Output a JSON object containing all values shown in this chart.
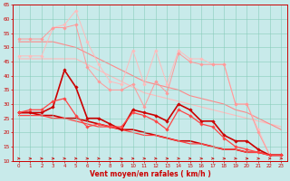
{
  "xlabel": "Vent moyen/en rafales ( km/h )",
  "xlim": [
    -0.5,
    23.5
  ],
  "ylim": [
    10,
    65
  ],
  "yticks": [
    10,
    15,
    20,
    25,
    30,
    35,
    40,
    45,
    50,
    55,
    60,
    65
  ],
  "xticks": [
    0,
    1,
    2,
    3,
    4,
    5,
    6,
    7,
    8,
    9,
    10,
    11,
    12,
    13,
    14,
    15,
    16,
    17,
    18,
    19,
    20,
    21,
    22,
    23
  ],
  "bg_color": "#c8eaea",
  "grid_color": "#88ccbb",
  "lines": [
    {
      "x": [
        0,
        1,
        2,
        3,
        4,
        5,
        6,
        7,
        8,
        9,
        10,
        11,
        12,
        13,
        14,
        15,
        16,
        17,
        18,
        19,
        20,
        21,
        22,
        23
      ],
      "y": [
        47,
        47,
        47,
        57,
        58,
        63,
        52,
        44,
        38,
        37,
        49,
        37,
        49,
        37,
        49,
        46,
        46,
        44,
        44,
        30,
        30,
        21,
        12,
        12
      ],
      "color": "#ffbbbb",
      "lw": 0.7,
      "marker": "D",
      "ms": 1.8,
      "zorder": 2
    },
    {
      "x": [
        0,
        1,
        2,
        3,
        4,
        5,
        6,
        7,
        8,
        9,
        10,
        11,
        12,
        13,
        14,
        15,
        16,
        17,
        18,
        19,
        20,
        21,
        22,
        23
      ],
      "y": [
        53,
        53,
        53,
        57,
        57,
        58,
        43,
        38,
        35,
        35,
        37,
        29,
        38,
        34,
        48,
        45,
        44,
        44,
        44,
        30,
        30,
        20,
        12,
        12
      ],
      "color": "#ff9999",
      "lw": 0.7,
      "marker": "D",
      "ms": 1.8,
      "zorder": 2
    },
    {
      "x": [
        0,
        1,
        2,
        3,
        4,
        5,
        6,
        7,
        8,
        9,
        10,
        11,
        12,
        13,
        14,
        15,
        16,
        17,
        18,
        19,
        20,
        21,
        22,
        23
      ],
      "y": [
        46,
        46,
        46,
        46,
        46,
        46,
        44,
        42,
        40,
        38,
        36,
        34,
        33,
        32,
        31,
        30,
        29,
        28,
        27,
        26,
        25,
        24,
        23,
        22
      ],
      "color": "#ffbbbb",
      "lw": 0.8,
      "marker": null,
      "ms": 0,
      "zorder": 1
    },
    {
      "x": [
        0,
        1,
        2,
        3,
        4,
        5,
        6,
        7,
        8,
        9,
        10,
        11,
        12,
        13,
        14,
        15,
        16,
        17,
        18,
        19,
        20,
        21,
        22,
        23
      ],
      "y": [
        52,
        52,
        52,
        52,
        51,
        50,
        48,
        46,
        44,
        42,
        40,
        38,
        37,
        36,
        35,
        33,
        32,
        31,
        30,
        28,
        27,
        25,
        23,
        21
      ],
      "color": "#ff8888",
      "lw": 0.8,
      "marker": null,
      "ms": 0,
      "zorder": 1
    },
    {
      "x": [
        0,
        1,
        2,
        3,
        4,
        5,
        6,
        7,
        8,
        9,
        10,
        11,
        12,
        13,
        14,
        15,
        16,
        17,
        18,
        19,
        20,
        21,
        22,
        23
      ],
      "y": [
        27,
        27,
        27,
        29,
        42,
        36,
        25,
        25,
        23,
        21,
        28,
        27,
        26,
        24,
        30,
        28,
        24,
        24,
        19,
        17,
        17,
        14,
        12,
        12
      ],
      "color": "#cc0000",
      "lw": 1.2,
      "marker": "D",
      "ms": 1.8,
      "zorder": 3
    },
    {
      "x": [
        0,
        1,
        2,
        3,
        4,
        5,
        6,
        7,
        8,
        9,
        10,
        11,
        12,
        13,
        14,
        15,
        16,
        17,
        18,
        19,
        20,
        21,
        22,
        23
      ],
      "y": [
        27,
        28,
        28,
        31,
        32,
        26,
        22,
        23,
        22,
        22,
        27,
        26,
        24,
        21,
        28,
        26,
        23,
        22,
        18,
        15,
        14,
        13,
        12,
        12
      ],
      "color": "#ff4444",
      "lw": 0.9,
      "marker": "D",
      "ms": 1.8,
      "zorder": 3
    },
    {
      "x": [
        0,
        1,
        2,
        3,
        4,
        5,
        6,
        7,
        8,
        9,
        10,
        11,
        12,
        13,
        14,
        15,
        16,
        17,
        18,
        19,
        20,
        21,
        22,
        23
      ],
      "y": [
        27,
        27,
        26,
        26,
        25,
        25,
        24,
        23,
        22,
        21,
        21,
        20,
        19,
        18,
        17,
        17,
        16,
        15,
        14,
        14,
        13,
        13,
        12,
        12
      ],
      "color": "#cc0000",
      "lw": 1.2,
      "marker": null,
      "ms": 0,
      "zorder": 1
    },
    {
      "x": [
        0,
        1,
        2,
        3,
        4,
        5,
        6,
        7,
        8,
        9,
        10,
        11,
        12,
        13,
        14,
        15,
        16,
        17,
        18,
        19,
        20,
        21,
        22,
        23
      ],
      "y": [
        26,
        26,
        26,
        25,
        25,
        24,
        23,
        22,
        22,
        21,
        20,
        19,
        19,
        18,
        17,
        16,
        16,
        15,
        14,
        14,
        13,
        13,
        12,
        12
      ],
      "color": "#ff4444",
      "lw": 0.9,
      "marker": null,
      "ms": 0,
      "zorder": 1
    }
  ],
  "arrow_color": "#cc0000",
  "tick_color": "#cc0000",
  "label_color": "#cc0000",
  "spine_color": "#cc0000"
}
